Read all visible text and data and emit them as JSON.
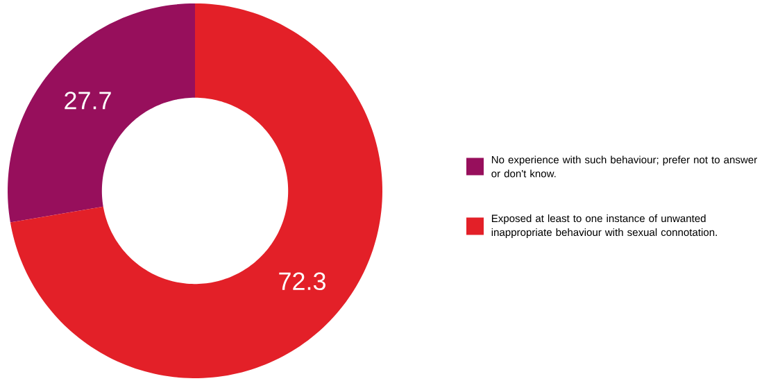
{
  "chart_data": {
    "type": "donut",
    "categories": [
      "No experience with such behaviour; prefer not to answer or don't know.",
      "Exposed at least to one instance of unwanted inappropriate behaviour with sexual connotation."
    ],
    "values": [
      27.7,
      72.3
    ],
    "colors": [
      "#970f5c",
      "#e32028"
    ],
    "data_labels": true,
    "legend": "right"
  }
}
